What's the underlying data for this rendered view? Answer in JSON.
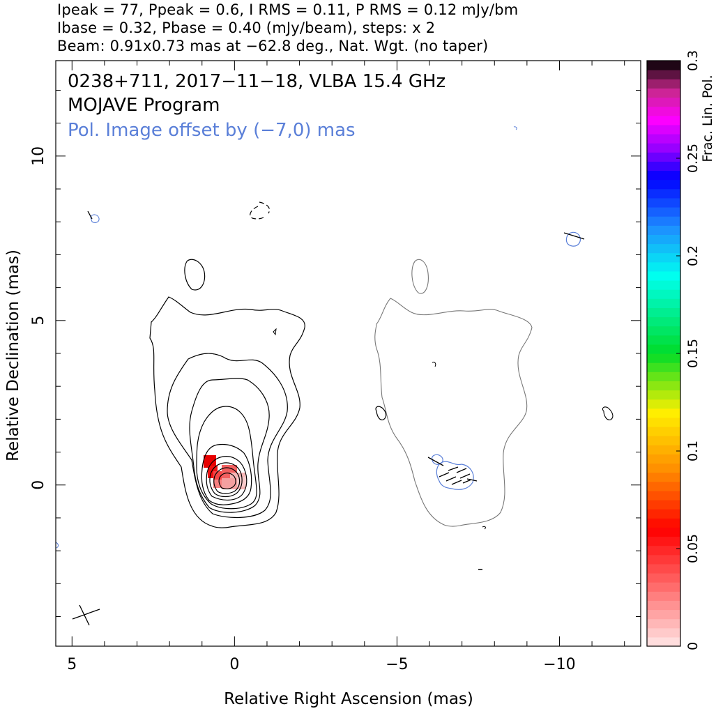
{
  "header": {
    "line1": "Ipeak = 77, Ppeak = 0.6, I RMS = 0.11, P RMS = 0.12 mJy/bm",
    "line2": "Ibase = 0.32, Pbase = 0.40 (mJy/beam), steps: x 2",
    "line3": "Beam: 0.91x0.73 mas at −62.8 deg., Nat. Wgt. (no taper)"
  },
  "plot_title": {
    "line1": "0238+711, 2017−11−18, VLBA 15.4 GHz",
    "line2": "MOJAVE Program",
    "line3": "Pol. Image offset by (−7,0) mas",
    "line3_color": "#5a7fd8"
  },
  "chart_data": {
    "type": "contour",
    "xlabel": "Relative Right Ascension (mas)",
    "ylabel": "Relative Declination (mas)",
    "xlim": [
      5.5,
      -12.5
    ],
    "ylim": [
      -4.9,
      12.9
    ],
    "x_ticks": [
      5,
      0,
      -5,
      -10
    ],
    "x_tick_labels": [
      "5",
      "0",
      "−5",
      "−10"
    ],
    "y_ticks": [
      0,
      5,
      10
    ],
    "y_tick_labels": [
      "0",
      "5",
      "10"
    ],
    "colorbar": {
      "label": "Frac. Lin. Pol.",
      "range": [
        0,
        0.3
      ],
      "ticks": [
        0,
        0.05,
        0.1,
        0.15,
        0.2,
        0.25,
        0.3
      ],
      "tick_labels": [
        "0",
        "0.05",
        "0.1",
        "0.15",
        "0.2",
        "0.25",
        "0.3"
      ]
    },
    "contour_levels_mJy_per_beam": [
      0.32,
      0.64,
      1.28,
      2.56,
      5.12,
      10.24,
      20.48,
      40.96
    ],
    "ipeak": 77,
    "ppeak": 0.6,
    "beam": {
      "major_mas": 0.91,
      "minor_mas": 0.73,
      "pa_deg": -62.8
    },
    "pol_offset_mas": [
      -7,
      0
    ],
    "frac_pol_region": {
      "center": [
        0.3,
        0.3
      ],
      "approx_value": 0.02
    }
  },
  "colors": {
    "total_intensity_contour": "#000000",
    "pol_intensity_contour": "#5a7fd8",
    "offset_image_contour": "#555555"
  }
}
